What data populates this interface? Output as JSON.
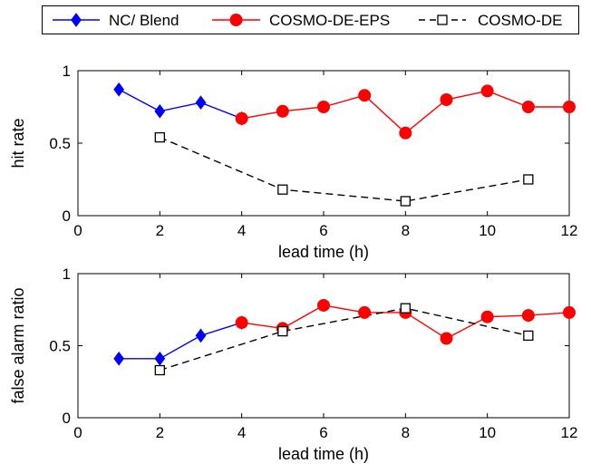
{
  "legend": {
    "placement": "top",
    "entries": [
      {
        "label": "NC/ Blend",
        "color": "#0000ff",
        "marker": "diamond-icon",
        "line": "solid"
      },
      {
        "label": "COSMO-DE-EPS",
        "color": "#ff0000",
        "marker": "circle-icon",
        "line": "solid"
      },
      {
        "label": "COSMO-DE",
        "color": "#000000",
        "marker": "square-icon",
        "line": "dashed"
      }
    ]
  },
  "chart_data": [
    {
      "type": "line",
      "title": "",
      "xlabel": "lead time (h)",
      "ylabel": "hit rate",
      "xlim": [
        0,
        12
      ],
      "ylim": [
        0,
        1
      ],
      "xticks": [
        "0",
        "2",
        "4",
        "6",
        "8",
        "10",
        "12"
      ],
      "yticks": [
        "0",
        "0.5",
        "1"
      ],
      "grid": false,
      "series": [
        {
          "name": "NC/ Blend",
          "color": "#0000ff",
          "marker": "diamond",
          "dashed": false,
          "x": [
            1,
            2,
            3,
            4
          ],
          "y": [
            0.87,
            0.72,
            0.78,
            0.67
          ]
        },
        {
          "name": "COSMO-DE-EPS",
          "color": "#ff0000",
          "marker": "circle",
          "dashed": false,
          "x": [
            4,
            5,
            6,
            7,
            8,
            9,
            10,
            11,
            12
          ],
          "y": [
            0.67,
            0.72,
            0.75,
            0.83,
            0.57,
            0.8,
            0.86,
            0.75,
            0.75
          ]
        },
        {
          "name": "COSMO-DE",
          "color": "#000000",
          "marker": "square",
          "dashed": true,
          "x": [
            2,
            5,
            8,
            11
          ],
          "y": [
            0.54,
            0.18,
            0.1,
            0.25
          ]
        }
      ]
    },
    {
      "type": "line",
      "title": "",
      "xlabel": "lead time (h)",
      "ylabel": "false alarm ratio",
      "xlim": [
        0,
        12
      ],
      "ylim": [
        0,
        1
      ],
      "xticks": [
        "0",
        "2",
        "4",
        "6",
        "8",
        "10",
        "12"
      ],
      "yticks": [
        "0",
        "0.5",
        "1"
      ],
      "grid": false,
      "series": [
        {
          "name": "NC/ Blend",
          "color": "#0000ff",
          "marker": "diamond",
          "dashed": false,
          "x": [
            1,
            2,
            3,
            4
          ],
          "y": [
            0.41,
            0.41,
            0.57,
            0.66
          ]
        },
        {
          "name": "COSMO-DE-EPS",
          "color": "#ff0000",
          "marker": "circle",
          "dashed": false,
          "x": [
            4,
            5,
            6,
            7,
            8,
            9,
            10,
            11,
            12
          ],
          "y": [
            0.66,
            0.62,
            0.78,
            0.73,
            0.73,
            0.55,
            0.7,
            0.71,
            0.73
          ]
        },
        {
          "name": "COSMO-DE",
          "color": "#000000",
          "marker": "square",
          "dashed": true,
          "x": [
            2,
            5,
            8,
            11
          ],
          "y": [
            0.33,
            0.6,
            0.76,
            0.57
          ]
        }
      ]
    }
  ]
}
